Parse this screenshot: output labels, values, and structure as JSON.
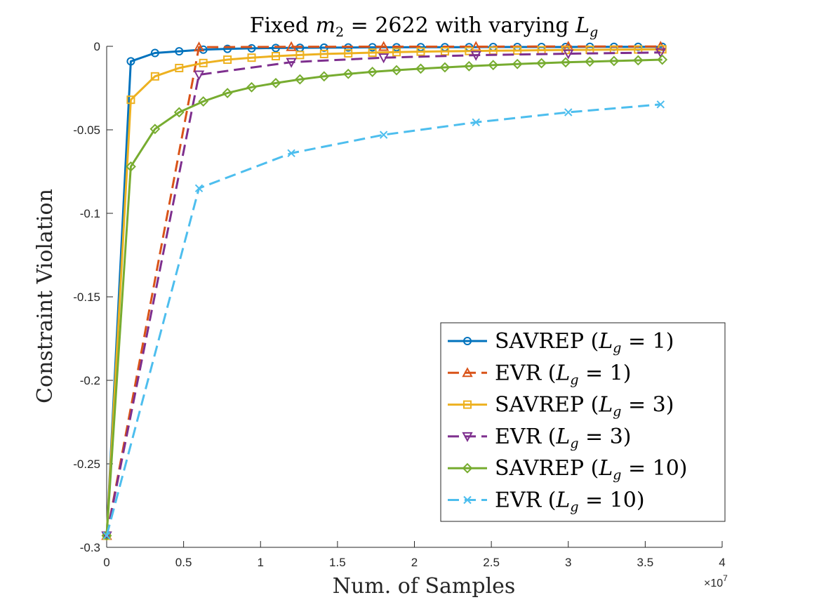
{
  "chart_data": {
    "type": "line",
    "title": "Fixed m₂ = 2622 with varying L_g",
    "title_parts": {
      "prefix": "Fixed ",
      "var1": "m",
      "sub1": "2",
      "middle": " = 2622 with varying ",
      "var2": "L",
      "sub2": "g"
    },
    "xlabel": "Num.  of Samples",
    "ylabel": "Constraint  Violation",
    "x_exponent_label": "×10",
    "x_exponent": "7",
    "xlim": [
      0,
      4
    ],
    "ylim": [
      -0.3,
      0
    ],
    "x_ticks": [
      0,
      0.5,
      1,
      1.5,
      2,
      2.5,
      3,
      3.5,
      4
    ],
    "x_tick_labels": [
      "0",
      "0.5",
      "1",
      "1.5",
      "2",
      "2.5",
      "3",
      "3.5",
      "4"
    ],
    "y_ticks": [
      0,
      -0.05,
      -0.1,
      -0.15,
      -0.2,
      -0.25,
      -0.3
    ],
    "y_tick_labels": [
      "0",
      "-0.05",
      "-0.1",
      "-0.15",
      "-0.2",
      "-0.25",
      "-0.3"
    ],
    "legend_position": "bottom-right",
    "series": [
      {
        "name": "SAVREP (L_g = 1)",
        "legend_method": "SAVREP",
        "legend_value": "1",
        "color": "#0072BD",
        "dash": "solid",
        "marker": "circle",
        "x": [
          0,
          0.157,
          0.314,
          0.471,
          0.628,
          0.785,
          0.942,
          1.099,
          1.256,
          1.413,
          1.57,
          1.727,
          1.884,
          2.041,
          2.198,
          2.355,
          2.512,
          2.669,
          2.826,
          2.983,
          3.14,
          3.297,
          3.454,
          3.611
        ],
        "y": [
          -0.293,
          -0.009,
          -0.004,
          -0.003,
          -0.002,
          -0.0015,
          -0.0012,
          -0.001,
          -0.0009,
          -0.0008,
          -0.0007,
          -0.0006,
          -0.0006,
          -0.0005,
          -0.0005,
          -0.0005,
          -0.0004,
          -0.0004,
          -0.0004,
          -0.0004,
          -0.0003,
          -0.0003,
          -0.0003,
          -0.0003
        ]
      },
      {
        "name": "EVR (L_g = 1)",
        "legend_method": "EVR",
        "legend_value": "1",
        "color": "#D95319",
        "dash": "dashed",
        "marker": "triangle-up",
        "x": [
          0,
          0.6,
          1.2,
          1.8,
          2.4,
          3.0,
          3.6
        ],
        "y": [
          -0.293,
          -0.0005,
          -0.0003,
          -0.0002,
          -0.0002,
          -0.0001,
          -0.0001
        ]
      },
      {
        "name": "SAVREP (L_g = 3)",
        "legend_method": "SAVREP",
        "legend_value": "3",
        "color": "#EDB120",
        "dash": "solid",
        "marker": "square",
        "x": [
          0,
          0.157,
          0.314,
          0.471,
          0.628,
          0.785,
          0.942,
          1.099,
          1.256,
          1.413,
          1.57,
          1.727,
          1.884,
          2.041,
          2.198,
          2.355,
          2.512,
          2.669,
          2.826,
          2.983,
          3.14,
          3.297,
          3.454,
          3.611
        ],
        "y": [
          -0.293,
          -0.032,
          -0.018,
          -0.013,
          -0.01,
          -0.008,
          -0.0068,
          -0.0059,
          -0.0052,
          -0.0046,
          -0.0042,
          -0.0038,
          -0.0035,
          -0.0032,
          -0.003,
          -0.0028,
          -0.0026,
          -0.0025,
          -0.0023,
          -0.0022,
          -0.0021,
          -0.002,
          -0.0019,
          -0.0018
        ]
      },
      {
        "name": "EVR (L_g = 3)",
        "legend_method": "EVR",
        "legend_value": "3",
        "color": "#7E2F8E",
        "dash": "dashed",
        "marker": "triangle-down",
        "x": [
          0,
          0.6,
          1.2,
          1.8,
          2.4,
          3.0,
          3.6
        ],
        "y": [
          -0.293,
          -0.017,
          -0.0095,
          -0.0068,
          -0.0053,
          -0.0044,
          -0.0037
        ]
      },
      {
        "name": "SAVREP (L_g = 10)",
        "legend_method": "SAVREP",
        "legend_value": "10",
        "color": "#77AC30",
        "dash": "solid",
        "marker": "diamond",
        "x": [
          0,
          0.157,
          0.314,
          0.471,
          0.628,
          0.785,
          0.942,
          1.099,
          1.256,
          1.413,
          1.57,
          1.727,
          1.884,
          2.041,
          2.198,
          2.355,
          2.512,
          2.669,
          2.826,
          2.983,
          3.14,
          3.297,
          3.454,
          3.611
        ],
        "y": [
          -0.293,
          -0.072,
          -0.0495,
          -0.0395,
          -0.033,
          -0.028,
          -0.0245,
          -0.022,
          -0.0198,
          -0.018,
          -0.0165,
          -0.0153,
          -0.0143,
          -0.0134,
          -0.0126,
          -0.0119,
          -0.0112,
          -0.0106,
          -0.0101,
          -0.0096,
          -0.0092,
          -0.0088,
          -0.0084,
          -0.008
        ]
      },
      {
        "name": "EVR (L_g = 10)",
        "legend_method": "EVR",
        "legend_value": "10",
        "color": "#4DBEEE",
        "dash": "dashed",
        "marker": "x",
        "x": [
          0,
          0.6,
          1.2,
          1.8,
          2.4,
          3.0,
          3.6
        ],
        "y": [
          -0.293,
          -0.085,
          -0.064,
          -0.053,
          -0.0455,
          -0.0395,
          -0.0348
        ]
      }
    ]
  }
}
